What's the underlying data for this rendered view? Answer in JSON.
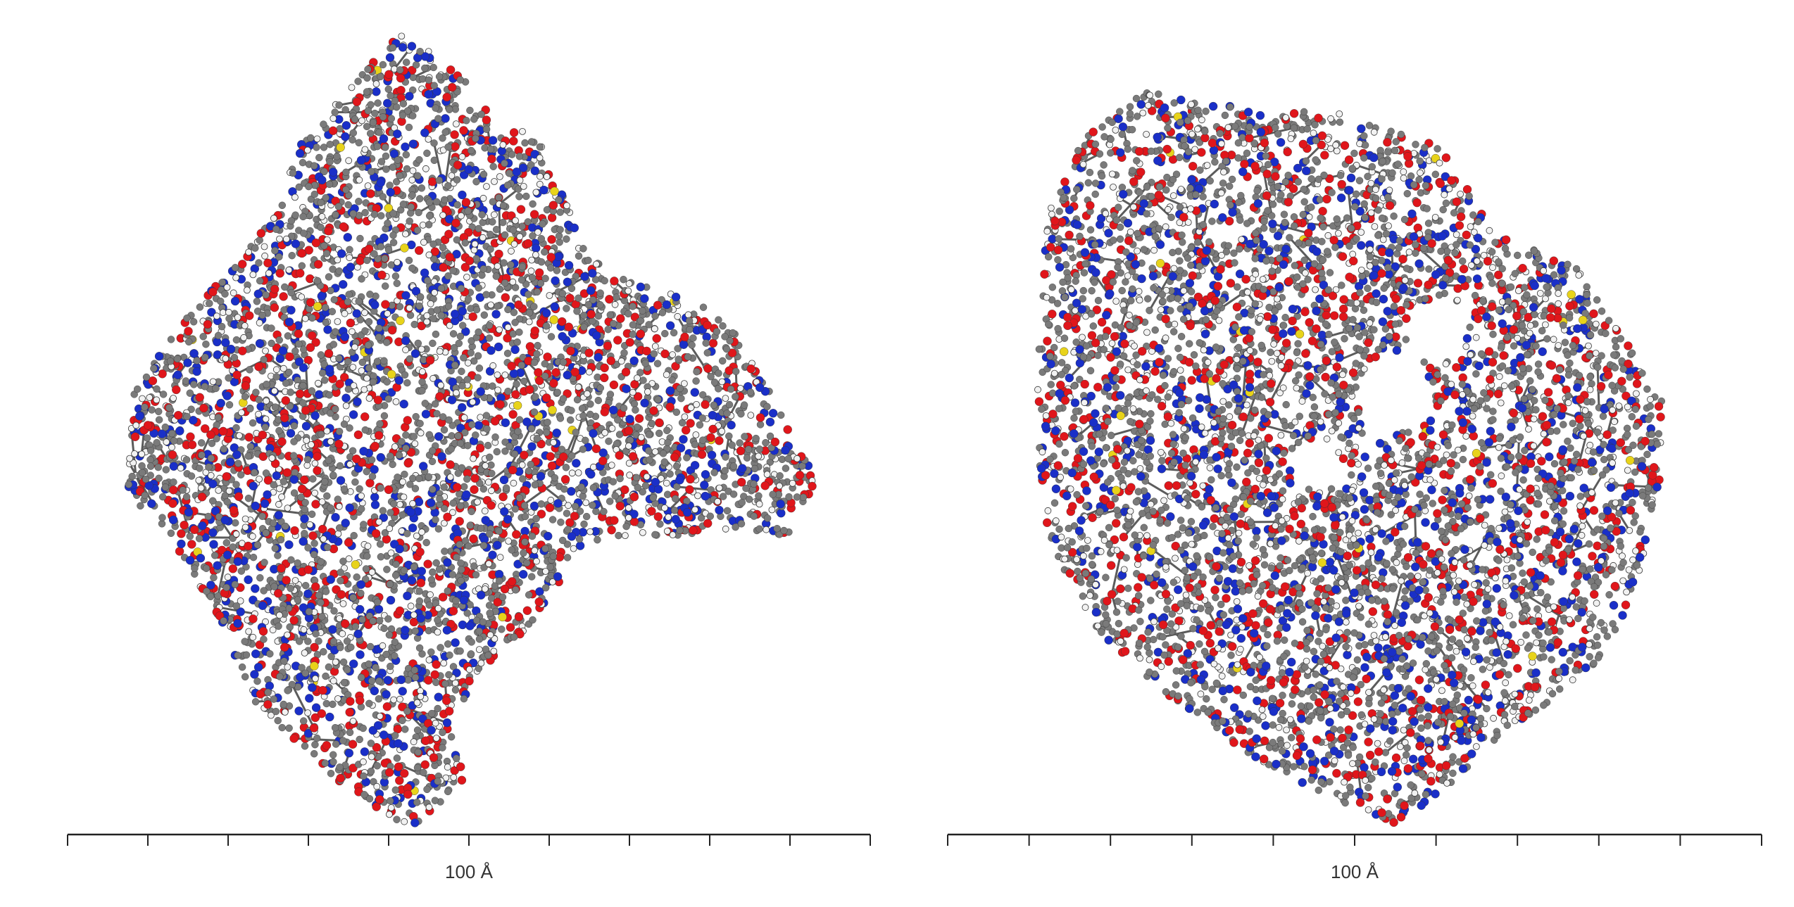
{
  "panels": [
    {
      "id": "left",
      "scale_bar": {
        "label": "100 Å",
        "major_ticks": 11,
        "minor_ticks": 0
      },
      "shape": "compact-globule"
    },
    {
      "id": "right",
      "scale_bar": {
        "label": "100 Å",
        "major_ticks": 11,
        "minor_ticks": 0
      },
      "shape": "ring-with-cavity"
    }
  ],
  "atom_colors": {
    "carbon": "#7a7a7a",
    "oxygen": "#e0161b",
    "nitrogen": "#1a2fc8",
    "hydrogen": "#f2f2f2",
    "sulfur": "#e8d31a",
    "bond": "#5c5c5c"
  }
}
